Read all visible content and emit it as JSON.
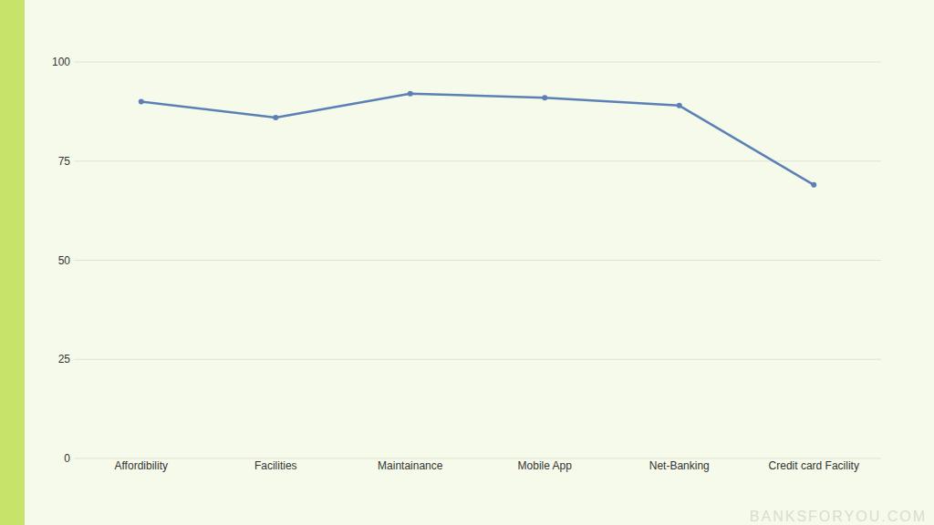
{
  "chart_data": {
    "type": "line",
    "categories": [
      "Affordibility",
      "Facilities",
      "Maintainance",
      "Mobile App",
      "Net-Banking",
      "Credit card Facility"
    ],
    "values": [
      90,
      86,
      92,
      91,
      89,
      69
    ],
    "color": "#5b80b6",
    "marker": "circle",
    "line_style": "solid",
    "ylim": [
      0,
      100
    ],
    "yticks": [
      0,
      25,
      50,
      75,
      100
    ],
    "grid": true,
    "annotations": [
      "BANKSFORYOU.COM"
    ]
  }
}
